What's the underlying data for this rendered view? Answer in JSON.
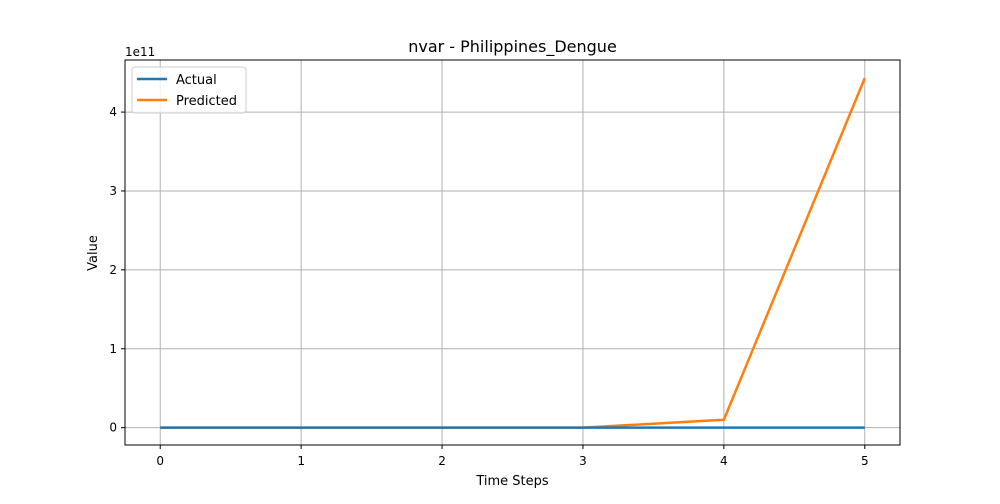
{
  "chart_data": {
    "type": "line",
    "title": "nvar - Philippines_Dengue",
    "xlabel": "Time Steps",
    "ylabel": "Value",
    "y_offset_label": "1e11",
    "x": [
      0,
      1,
      2,
      3,
      4,
      5
    ],
    "xlim": [
      -0.25,
      5.25
    ],
    "ylim": [
      -22000000000,
      466000000000
    ],
    "x_ticks": [
      0,
      1,
      2,
      3,
      4,
      5
    ],
    "x_tick_labels": [
      "0",
      "1",
      "2",
      "3",
      "4",
      "5"
    ],
    "y_ticks": [
      0,
      100000000000,
      200000000000,
      300000000000,
      400000000000
    ],
    "y_tick_labels": [
      "0",
      "1",
      "2",
      "3",
      "4"
    ],
    "grid": true,
    "legend_position": "top-left",
    "series": [
      {
        "name": "Actual",
        "color": "#1f77b4",
        "values": [
          0,
          0,
          0,
          0,
          0,
          0
        ]
      },
      {
        "name": "Predicted",
        "color": "#ff7f0e",
        "values": [
          0,
          0,
          0,
          0,
          10000000000,
          443000000000
        ]
      }
    ]
  }
}
